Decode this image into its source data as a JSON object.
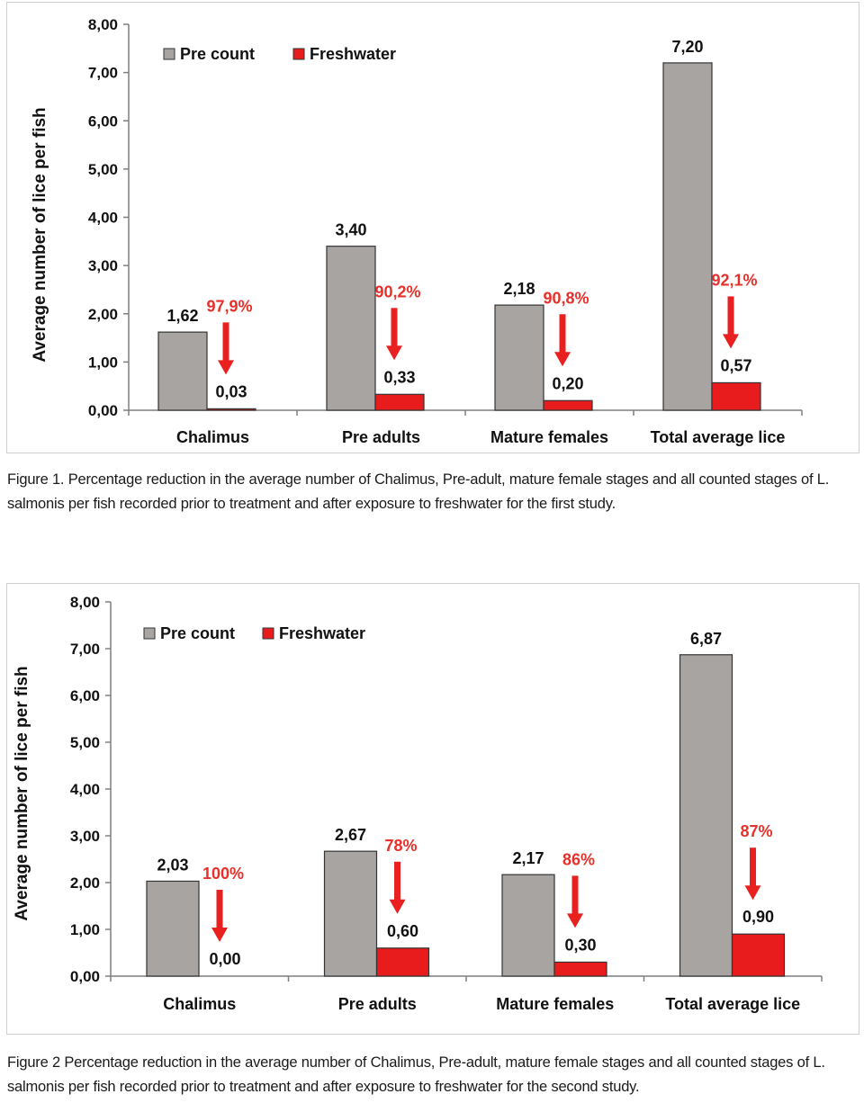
{
  "colors": {
    "pre_count": "#a8a4a2",
    "freshwater": "#e81c1c",
    "reduction_label": "#e8302a",
    "arrow": "#e82020",
    "axis": "#7f7f7f"
  },
  "chart_data": [
    {
      "type": "bar",
      "categories": [
        "Chalimus",
        "Pre adults",
        "Mature females",
        "Total average lice"
      ],
      "series": [
        {
          "name": "Pre count",
          "values": [
            1.62,
            3.4,
            2.18,
            7.2
          ],
          "labels": [
            "1,62",
            "3,40",
            "2,18",
            "7,20"
          ]
        },
        {
          "name": "Freshwater",
          "values": [
            0.03,
            0.33,
            0.2,
            0.57
          ],
          "labels": [
            "0,03",
            "0,33",
            "0,20",
            "0,57"
          ]
        }
      ],
      "reductions": [
        "97,9%",
        "90,2%",
        "90,8%",
        "92,1%"
      ],
      "ylabel": "Average number of lice per fish",
      "ylim": [
        0,
        8
      ],
      "yticks": [
        "0,00",
        "1,00",
        "2,00",
        "3,00",
        "4,00",
        "5,00",
        "6,00",
        "7,00",
        "8,00"
      ],
      "legend": "top-left",
      "grid": false
    },
    {
      "type": "bar",
      "categories": [
        "Chalimus",
        "Pre adults",
        "Mature females",
        "Total average lice"
      ],
      "series": [
        {
          "name": "Pre count",
          "values": [
            2.03,
            2.67,
            2.17,
            6.87
          ],
          "labels": [
            "2,03",
            "2,67",
            "2,17",
            "6,87"
          ]
        },
        {
          "name": "Freshwater",
          "values": [
            0.0,
            0.6,
            0.3,
            0.9
          ],
          "labels": [
            "0,00",
            "0,60",
            "0,30",
            "0,90"
          ]
        }
      ],
      "reductions": [
        "100%",
        "78%",
        "86%",
        "87%"
      ],
      "ylabel": "Average number of lice per fish",
      "ylim": [
        0,
        8
      ],
      "yticks": [
        "0,00",
        "1,00",
        "2,00",
        "3,00",
        "4,00",
        "5,00",
        "6,00",
        "7,00",
        "8,00"
      ],
      "legend": "top-left",
      "grid": false
    }
  ],
  "captions": {
    "figure1": "Figure 1. Percentage reduction in the average number of Chalimus, Pre-adult, mature female stages and all counted stages of L. salmonis per fish recorded prior to treatment and after exposure to freshwater for the first study.",
    "figure2": "Figure 2 Percentage reduction in the average number of Chalimus, Pre-adult, mature female stages and all counted stages of L. salmonis per fish recorded prior to treatment and after exposure to freshwater for the second study."
  }
}
